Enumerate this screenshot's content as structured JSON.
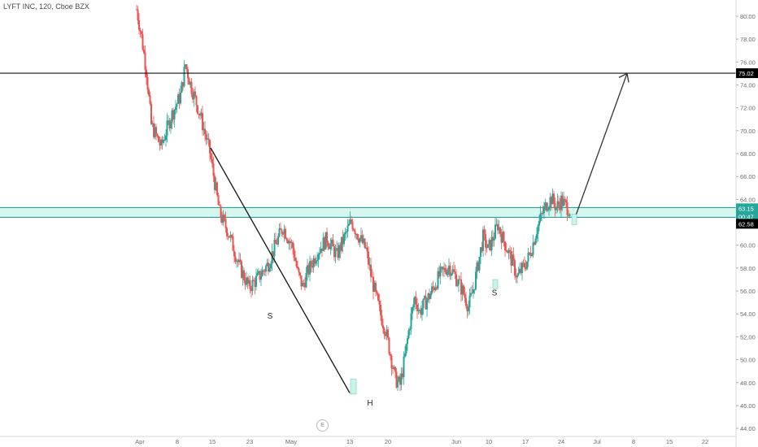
{
  "header": {
    "title": "LYFT INC, 120, Cboe BZX"
  },
  "colors": {
    "up": "#26a69a",
    "down": "#ef5350",
    "zone_fill": "#b2f0e4",
    "zone_edge": "#1b8c8c",
    "line": "#111111",
    "price_tag": "#26a69a",
    "level_tag": "#000000"
  },
  "event_marker": {
    "label": "E",
    "icon": "earnings-marker-icon"
  },
  "chart_data": {
    "type": "candlestick",
    "title": "LYFT INC, 120, Cboe BZX",
    "x_ticks": [
      "Apr",
      "8",
      "15",
      "23",
      "May",
      "13",
      "20",
      "Jun",
      "10",
      "17",
      "24",
      "Jul",
      "8",
      "15",
      "22"
    ],
    "y_ticks": [
      44,
      46,
      48,
      50,
      52,
      54,
      56,
      58,
      60,
      62,
      64,
      66,
      68,
      70,
      72,
      74,
      76,
      78,
      80
    ],
    "y_tick_labels": [
      "44.00",
      "46.00",
      "48.00",
      "50.00",
      "52.00",
      "54.00",
      "56.00",
      "58.00",
      "60.00",
      "62.00",
      "64.00",
      "66.00",
      "68.00",
      "70.00",
      "72.00",
      "74.00",
      "76.00",
      "78.00",
      "80.00"
    ],
    "ylim": [
      43.3,
      81.2
    ],
    "price_path": [
      [
        0,
        80.6
      ],
      [
        1,
        78.2
      ],
      [
        2,
        75.2
      ],
      [
        3,
        70.5
      ],
      [
        5,
        68.6
      ],
      [
        7,
        71.2
      ],
      [
        9,
        73.1
      ],
      [
        10,
        75.8
      ],
      [
        11,
        74.1
      ],
      [
        13,
        71.4
      ],
      [
        15,
        68.1
      ],
      [
        17,
        62.8
      ],
      [
        19,
        60.9
      ],
      [
        21,
        58.2
      ],
      [
        23,
        56.3
      ],
      [
        25,
        57.2
      ],
      [
        27,
        58.4
      ],
      [
        29,
        60.6
      ],
      [
        30,
        61.6
      ],
      [
        32,
        59.8
      ],
      [
        33,
        57.6
      ],
      [
        34,
        56.4
      ],
      [
        35,
        57.6
      ],
      [
        37,
        59.4
      ],
      [
        39,
        60.6
      ],
      [
        41,
        59.1
      ],
      [
        43,
        61.1
      ],
      [
        44,
        62.1
      ],
      [
        45,
        61.2
      ],
      [
        47,
        59.6
      ],
      [
        48,
        57.4
      ],
      [
        49,
        55.6
      ],
      [
        50,
        53.9
      ],
      [
        51,
        52.6
      ],
      [
        52,
        50.5
      ],
      [
        53,
        48.3
      ],
      [
        54,
        47.8
      ],
      [
        55,
        50.3
      ],
      [
        56,
        53.2
      ],
      [
        57,
        55.4
      ],
      [
        58,
        54.2
      ],
      [
        60,
        55.6
      ],
      [
        62,
        57.3
      ],
      [
        64,
        58.2
      ],
      [
        65,
        57.5
      ],
      [
        66,
        56.7
      ],
      [
        67,
        55.8
      ],
      [
        68,
        54.6
      ],
      [
        69,
        56.2
      ],
      [
        70,
        58.4
      ],
      [
        71,
        60.7
      ],
      [
        72,
        59.6
      ],
      [
        73,
        60.6
      ],
      [
        74,
        61.8
      ],
      [
        75,
        60.6
      ],
      [
        76,
        59.6
      ],
      [
        77,
        58.5
      ],
      [
        78,
        57.2
      ],
      [
        79,
        57.9
      ],
      [
        80,
        58.6
      ],
      [
        81,
        59.8
      ],
      [
        82,
        61.4
      ],
      [
        83,
        62.6
      ],
      [
        84,
        63.6
      ],
      [
        85,
        64.1
      ],
      [
        86,
        63.3
      ],
      [
        87,
        63.9
      ],
      [
        88,
        63.4
      ],
      [
        89,
        63.0
      ]
    ],
    "bar_count": 90,
    "x_range": [
      0,
      89
    ],
    "resistance_level": 75.02,
    "resistance_label": "75.02",
    "zone": {
      "top": 63.15,
      "bottom": 62.58
    },
    "price_tag": {
      "value": 63.15,
      "label": "63.15",
      "countdown": "00:47"
    },
    "zone_bottom_label": "62.58",
    "trendline": {
      "from": {
        "x_tick": "13",
        "price": 47.1
      },
      "to": {
        "x_tick": "15",
        "price": 68.5
      }
    },
    "projection_arrow": {
      "from": {
        "x_tick": "24",
        "price": 62.6
      },
      "to": {
        "x_tick": "8",
        "price": 75.0
      }
    },
    "annotations": [
      {
        "text": "S",
        "x_tick": "23",
        "price": 53.6
      },
      {
        "text": "H",
        "x_tick": "13",
        "price": 46.0
      },
      {
        "text": "S",
        "x_tick": "10",
        "price": 55.6
      }
    ],
    "grid": false
  }
}
